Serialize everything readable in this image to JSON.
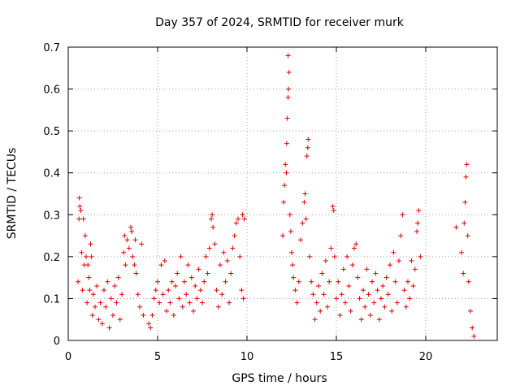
{
  "chart_data": {
    "type": "scatter",
    "title": "Day 357 of 2024, SRMTID for receiver murk",
    "xlabel": "GPS time / hours",
    "ylabel": "SRMTID / TECUs",
    "xlim": [
      0,
      24
    ],
    "ylim": [
      0,
      0.7
    ],
    "x_ticks": [
      "0",
      "5",
      "10",
      "15",
      "20"
    ],
    "y_ticks": [
      "0",
      "0.1",
      "0.2",
      "0.3",
      "0.4",
      "0.5",
      "0.6",
      "0.7"
    ],
    "grid": true,
    "marker": "plus",
    "color": "#e00000",
    "series": [
      {
        "points": [
          [
            0.55,
            0.14
          ],
          [
            0.6,
            0.29
          ],
          [
            0.62,
            0.34
          ],
          [
            0.65,
            0.32
          ],
          [
            0.7,
            0.31
          ],
          [
            0.75,
            0.21
          ],
          [
            0.8,
            0.12
          ],
          [
            0.85,
            0.29
          ],
          [
            0.9,
            0.18
          ],
          [
            0.95,
            0.25
          ],
          [
            1.0,
            0.2
          ],
          [
            1.05,
            0.09
          ],
          [
            1.1,
            0.18
          ],
          [
            1.15,
            0.15
          ],
          [
            1.2,
            0.12
          ],
          [
            1.25,
            0.23
          ],
          [
            1.3,
            0.2
          ],
          [
            1.35,
            0.06
          ],
          [
            1.4,
            0.11
          ],
          [
            1.5,
            0.08
          ],
          [
            1.6,
            0.13
          ],
          [
            1.7,
            0.05
          ],
          [
            1.8,
            0.09
          ],
          [
            1.9,
            0.04
          ],
          [
            2.0,
            0.12
          ],
          [
            2.1,
            0.08
          ],
          [
            2.2,
            0.14
          ],
          [
            2.3,
            0.03
          ],
          [
            2.4,
            0.1
          ],
          [
            2.5,
            0.06
          ],
          [
            2.6,
            0.13
          ],
          [
            2.7,
            0.09
          ],
          [
            2.8,
            0.15
          ],
          [
            2.9,
            0.05
          ],
          [
            3.0,
            0.11
          ],
          [
            3.1,
            0.21
          ],
          [
            3.15,
            0.25
          ],
          [
            3.2,
            0.18
          ],
          [
            3.3,
            0.24
          ],
          [
            3.4,
            0.22
          ],
          [
            3.5,
            0.27
          ],
          [
            3.55,
            0.26
          ],
          [
            3.6,
            0.2
          ],
          [
            3.7,
            0.18
          ],
          [
            3.75,
            0.24
          ],
          [
            3.8,
            0.16
          ],
          [
            3.9,
            0.11
          ],
          [
            4.0,
            0.08
          ],
          [
            4.1,
            0.23
          ],
          [
            4.2,
            0.06
          ],
          [
            4.5,
            0.04
          ],
          [
            4.6,
            0.03
          ],
          [
            4.7,
            0.06
          ],
          [
            4.8,
            0.1
          ],
          [
            4.9,
            0.12
          ],
          [
            5.0,
            0.14
          ],
          [
            5.1,
            0.09
          ],
          [
            5.2,
            0.18
          ],
          [
            5.3,
            0.11
          ],
          [
            5.4,
            0.19
          ],
          [
            5.5,
            0.07
          ],
          [
            5.6,
            0.12
          ],
          [
            5.7,
            0.09
          ],
          [
            5.8,
            0.14
          ],
          [
            5.9,
            0.06
          ],
          [
            6.0,
            0.13
          ],
          [
            6.1,
            0.16
          ],
          [
            6.2,
            0.1
          ],
          [
            6.3,
            0.2
          ],
          [
            6.4,
            0.08
          ],
          [
            6.5,
            0.14
          ],
          [
            6.6,
            0.11
          ],
          [
            6.7,
            0.18
          ],
          [
            6.8,
            0.09
          ],
          [
            6.9,
            0.15
          ],
          [
            7.0,
            0.07
          ],
          [
            7.1,
            0.13
          ],
          [
            7.2,
            0.1
          ],
          [
            7.3,
            0.17
          ],
          [
            7.4,
            0.12
          ],
          [
            7.5,
            0.09
          ],
          [
            7.6,
            0.14
          ],
          [
            7.7,
            0.2
          ],
          [
            7.8,
            0.16
          ],
          [
            7.9,
            0.22
          ],
          [
            8.0,
            0.29
          ],
          [
            8.05,
            0.3
          ],
          [
            8.1,
            0.27
          ],
          [
            8.2,
            0.23
          ],
          [
            8.3,
            0.12
          ],
          [
            8.4,
            0.08
          ],
          [
            8.5,
            0.18
          ],
          [
            8.6,
            0.11
          ],
          [
            8.7,
            0.21
          ],
          [
            8.8,
            0.14
          ],
          [
            8.9,
            0.19
          ],
          [
            9.0,
            0.09
          ],
          [
            9.1,
            0.16
          ],
          [
            9.2,
            0.22
          ],
          [
            9.3,
            0.25
          ],
          [
            9.4,
            0.28
          ],
          [
            9.5,
            0.29
          ],
          [
            9.6,
            0.2
          ],
          [
            9.7,
            0.12
          ],
          [
            9.75,
            0.3
          ],
          [
            9.8,
            0.1
          ],
          [
            9.85,
            0.29
          ],
          [
            12.0,
            0.25
          ],
          [
            12.05,
            0.33
          ],
          [
            12.1,
            0.37
          ],
          [
            12.15,
            0.42
          ],
          [
            12.2,
            0.4
          ],
          [
            12.22,
            0.47
          ],
          [
            12.25,
            0.53
          ],
          [
            12.3,
            0.58
          ],
          [
            12.32,
            0.6
          ],
          [
            12.35,
            0.64
          ],
          [
            12.3,
            0.68
          ],
          [
            12.4,
            0.3
          ],
          [
            12.45,
            0.26
          ],
          [
            12.5,
            0.21
          ],
          [
            12.55,
            0.18
          ],
          [
            12.6,
            0.15
          ],
          [
            12.7,
            0.12
          ],
          [
            12.8,
            0.09
          ],
          [
            12.9,
            0.14
          ],
          [
            13.0,
            0.24
          ],
          [
            13.1,
            0.28
          ],
          [
            13.2,
            0.33
          ],
          [
            13.25,
            0.35
          ],
          [
            13.3,
            0.29
          ],
          [
            13.35,
            0.44
          ],
          [
            13.4,
            0.46
          ],
          [
            13.42,
            0.48
          ],
          [
            13.5,
            0.2
          ],
          [
            13.6,
            0.14
          ],
          [
            13.7,
            0.11
          ],
          [
            13.8,
            0.05
          ],
          [
            13.9,
            0.09
          ],
          [
            14.0,
            0.13
          ],
          [
            14.1,
            0.07
          ],
          [
            14.2,
            0.16
          ],
          [
            14.3,
            0.11
          ],
          [
            14.4,
            0.19
          ],
          [
            14.5,
            0.08
          ],
          [
            14.6,
            0.14
          ],
          [
            14.7,
            0.22
          ],
          [
            14.8,
            0.32
          ],
          [
            14.85,
            0.31
          ],
          [
            14.9,
            0.2
          ],
          [
            15.0,
            0.1
          ],
          [
            15.1,
            0.14
          ],
          [
            15.2,
            0.06
          ],
          [
            15.3,
            0.11
          ],
          [
            15.4,
            0.17
          ],
          [
            15.5,
            0.09
          ],
          [
            15.6,
            0.2
          ],
          [
            15.7,
            0.13
          ],
          [
            15.8,
            0.07
          ],
          [
            15.9,
            0.18
          ],
          [
            16.0,
            0.22
          ],
          [
            16.1,
            0.23
          ],
          [
            16.2,
            0.15
          ],
          [
            16.3,
            0.1
          ],
          [
            16.4,
            0.05
          ],
          [
            16.5,
            0.12
          ],
          [
            16.6,
            0.08
          ],
          [
            16.7,
            0.17
          ],
          [
            16.8,
            0.11
          ],
          [
            16.9,
            0.06
          ],
          [
            17.0,
            0.14
          ],
          [
            17.1,
            0.09
          ],
          [
            17.2,
            0.16
          ],
          [
            17.3,
            0.12
          ],
          [
            17.4,
            0.05
          ],
          [
            17.5,
            0.1
          ],
          [
            17.6,
            0.13
          ],
          [
            17.7,
            0.08
          ],
          [
            17.8,
            0.15
          ],
          [
            17.9,
            0.11
          ],
          [
            18.0,
            0.18
          ],
          [
            18.1,
            0.07
          ],
          [
            18.2,
            0.21
          ],
          [
            18.3,
            0.14
          ],
          [
            18.4,
            0.09
          ],
          [
            18.5,
            0.19
          ],
          [
            18.6,
            0.25
          ],
          [
            18.7,
            0.3
          ],
          [
            18.8,
            0.12
          ],
          [
            18.9,
            0.08
          ],
          [
            19.0,
            0.14
          ],
          [
            19.1,
            0.1
          ],
          [
            19.2,
            0.19
          ],
          [
            19.3,
            0.13
          ],
          [
            19.4,
            0.17
          ],
          [
            19.5,
            0.26
          ],
          [
            19.55,
            0.28
          ],
          [
            19.6,
            0.31
          ],
          [
            19.7,
            0.2
          ],
          [
            21.7,
            0.27
          ],
          [
            22.0,
            0.21
          ],
          [
            22.1,
            0.16
          ],
          [
            22.15,
            0.28
          ],
          [
            22.2,
            0.33
          ],
          [
            22.25,
            0.39
          ],
          [
            22.3,
            0.42
          ],
          [
            22.35,
            0.25
          ],
          [
            22.4,
            0.14
          ],
          [
            22.5,
            0.07
          ],
          [
            22.6,
            0.03
          ],
          [
            22.7,
            0.01
          ]
        ]
      }
    ]
  }
}
